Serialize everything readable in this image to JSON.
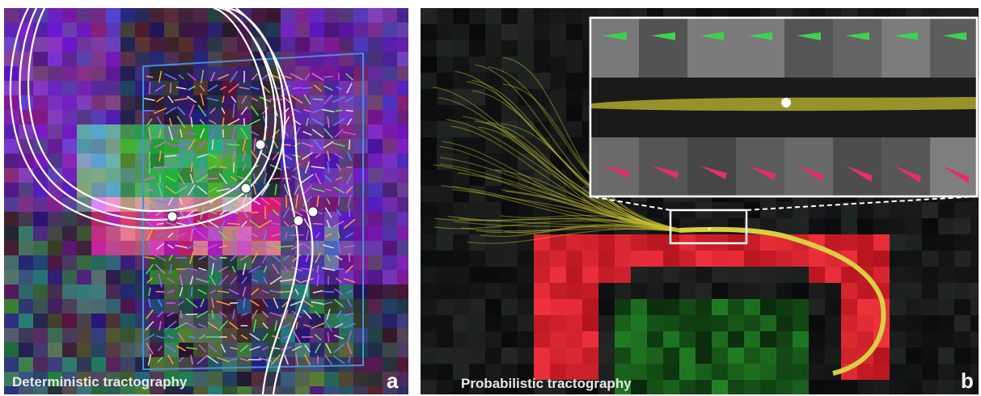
{
  "panels": [
    {
      "caption": "Deterministic tractography",
      "label": "a"
    },
    {
      "caption": "Probabilistic tractography",
      "label": "b"
    }
  ]
}
